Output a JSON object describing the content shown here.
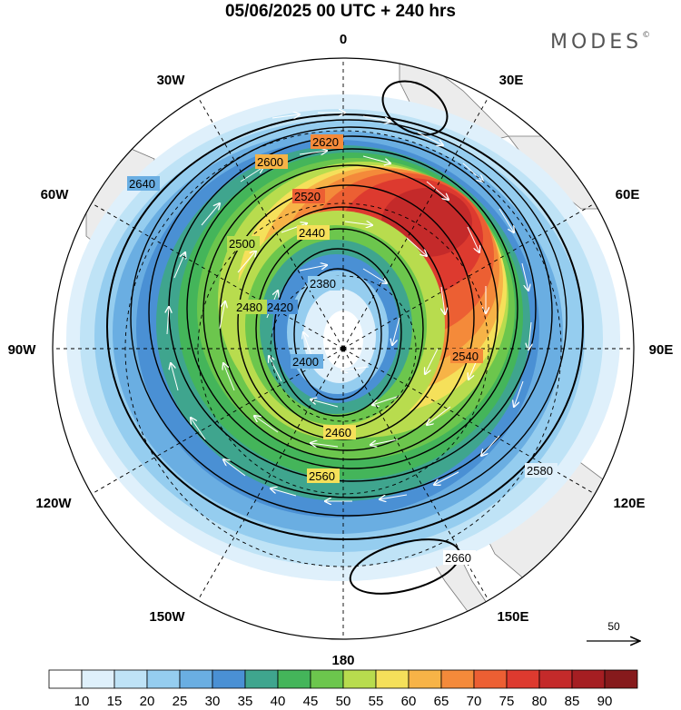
{
  "title": "05/06/2025  00 UTC  + 240 hrs",
  "brand": "MODES",
  "brand_mark": "©",
  "lon_labels": [
    {
      "text": "0",
      "lon": 0
    },
    {
      "text": "30E",
      "lon": 30
    },
    {
      "text": "60E",
      "lon": 60
    },
    {
      "text": "90E",
      "lon": 90
    },
    {
      "text": "120E",
      "lon": 120
    },
    {
      "text": "150E",
      "lon": 150
    },
    {
      "text": "180",
      "lon": 180
    },
    {
      "text": "150W",
      "lon": -150
    },
    {
      "text": "120W",
      "lon": -120
    },
    {
      "text": "90W",
      "lon": -90
    },
    {
      "text": "60W",
      "lon": -60
    },
    {
      "text": "30W",
      "lon": -30
    }
  ],
  "contour_labels": [
    "2620",
    "2600",
    "2520",
    "2440",
    "2380",
    "2420",
    "2400",
    "2460",
    "2500",
    "2540",
    "2580",
    "2640",
    "2660",
    "2560",
    "2480"
  ],
  "wind_reference": "50",
  "colorbar": {
    "labels": [
      "10",
      "15",
      "20",
      "25",
      "30",
      "35",
      "40",
      "45",
      "50",
      "55",
      "60",
      "65",
      "70",
      "75",
      "80",
      "85",
      "90"
    ],
    "colors": [
      "#ffffff",
      "#dff0fb",
      "#bfe3f6",
      "#95cdef",
      "#6aaee2",
      "#4a90d4",
      "#3fa58e",
      "#44b55a",
      "#6cc64d",
      "#b8dc4e",
      "#f5e05a",
      "#f7b347",
      "#f48a3a",
      "#ec5f33",
      "#dd3a2f",
      "#c42a2a",
      "#a51e22",
      "#861a1c"
    ]
  }
}
